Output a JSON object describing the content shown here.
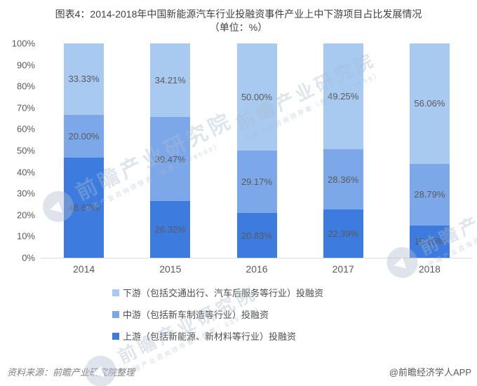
{
  "title": {
    "line1": "图表4：2014-2018年中国新能源汽车行业投融资事件产业上中下游项目占比发展情况",
    "line2": "（单位：%）"
  },
  "chart_data": {
    "type": "bar",
    "variant": "stacked-100-percent-column",
    "categories": [
      "2014",
      "2015",
      "2016",
      "2017",
      "2018"
    ],
    "series": [
      {
        "name": "上游（包括新能源、新材料等行业）投融资",
        "stack_position": "bottom",
        "color": "#3d7cde",
        "values": [
          46.67,
          26.32,
          20.83,
          22.39,
          15.15
        ]
      },
      {
        "name": "中游（包括新车制造等行业）投融资",
        "stack_position": "middle",
        "color": "#7ca8ea",
        "values": [
          20.0,
          39.47,
          29.17,
          28.36,
          28.79
        ]
      },
      {
        "name": "下游（包括交通出行、汽车后服务等行业）投融资",
        "stack_position": "top",
        "color": "#a8caf1",
        "values": [
          33.33,
          34.21,
          50.0,
          49.25,
          56.06
        ]
      }
    ],
    "data_labels_visible": true,
    "data_label_format": "0.00%",
    "ylim": [
      0,
      100
    ],
    "y_ticks": [
      "100%",
      "90%",
      "80%",
      "70%",
      "60%",
      "50%",
      "40%",
      "30%",
      "20%",
      "10%",
      "0%"
    ],
    "grid": false,
    "legend_position": "bottom-left",
    "baseline_color": "#d9d9d9",
    "label_text_color": "#595959"
  },
  "legend": {
    "items": [
      {
        "label": "下游（包括交通出行、汽车后服务等行业）投融资",
        "color": "#a8caf1"
      },
      {
        "label": "中游（包括新车制造等行业）投融资",
        "color": "#7ca8ea"
      },
      {
        "label": "上游（包括新能源、新材料等行业）投融资",
        "color": "#3d7cde"
      }
    ]
  },
  "watermark": {
    "text": "前瞻产业研究院",
    "subtext": "中国产业咨询领导者（股票：839599）"
  },
  "footer": {
    "source": "资料来源：前瞻产业研究院整理",
    "attribution": "@前瞻经济学人APP"
  }
}
